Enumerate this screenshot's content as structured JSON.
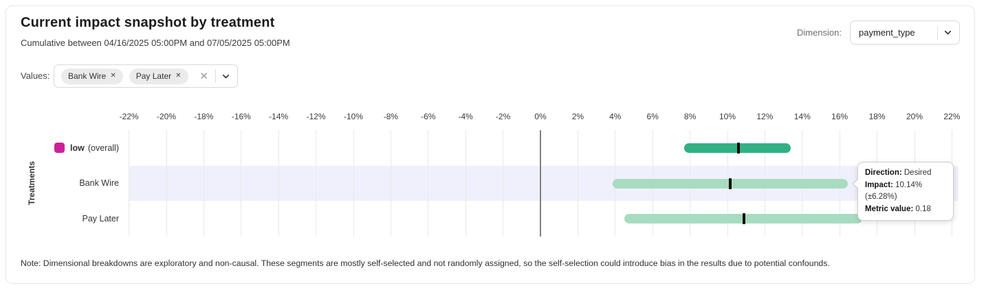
{
  "header": {
    "title": "Current impact snapshot by treatment",
    "subtitle": "Cumulative between 04/16/2025 05:00PM and 07/05/2025 05:00PM",
    "dimension_label": "Dimension:",
    "dimension_value": "payment_type"
  },
  "filters": {
    "values_label": "Values:",
    "chips": [
      {
        "label": "Bank Wire"
      },
      {
        "label": "Pay Later"
      }
    ]
  },
  "chart_data": {
    "type": "range-bar",
    "orientation": "horizontal",
    "ylabel": "Treatments",
    "xlim": [
      -23,
      23
    ],
    "x_ticks": [
      -22,
      -20,
      -18,
      -16,
      -14,
      -12,
      -10,
      -8,
      -6,
      -4,
      -2,
      0,
      2,
      4,
      6,
      8,
      10,
      12,
      14,
      16,
      18,
      20,
      22
    ],
    "x_tick_labels": [
      "-22%",
      "-20%",
      "-18%",
      "-16%",
      "-14%",
      "-12%",
      "-10%",
      "-8%",
      "-6%",
      "-4%",
      "-2%",
      "0%",
      "2%",
      "4%",
      "6%",
      "8%",
      "10%",
      "12%",
      "14%",
      "16%",
      "18%",
      "20%",
      "22%"
    ],
    "grid": "vertical",
    "marker_color": "#0a0a0a",
    "highlight_band_color": "#f0f0fc",
    "rows": [
      {
        "label": "low",
        "label_suffix": "(overall)",
        "legend_color": "#cc2299",
        "bar_color": "#31b183",
        "low": 7.7,
        "mid": 10.6,
        "high": 13.4,
        "highlighted": false
      },
      {
        "label": "Bank Wire",
        "label_suffix": "",
        "legend_color": "",
        "bar_color": "#a7dcc0",
        "low": 3.86,
        "mid": 10.14,
        "high": 16.42,
        "highlighted": true
      },
      {
        "label": "Pay Later",
        "label_suffix": "",
        "legend_color": "",
        "bar_color": "#a7dcc0",
        "low": 4.5,
        "mid": 10.9,
        "high": 17.2,
        "highlighted": false
      }
    ]
  },
  "tooltip": {
    "rows": [
      {
        "label": "Direction:",
        "value": "Desired"
      },
      {
        "label": "Impact:",
        "value": "10.14% (±6.28%)"
      },
      {
        "label": "Metric value:",
        "value": "0.18"
      }
    ]
  },
  "note": "Note: Dimensional breakdowns are exploratory and non-causal. These segments are mostly self-selected and not randomly assigned, so the self-selection could introduce bias in the results due to potential confounds."
}
